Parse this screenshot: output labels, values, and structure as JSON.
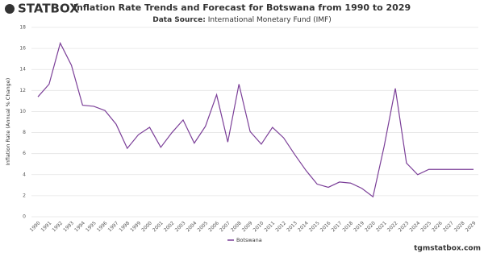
{
  "brand": "STATBOX",
  "footer": "tgmstatbox.com",
  "chart_data": {
    "type": "line",
    "title": "Inflation Rate Trends and Forecast for Botswana from 1990 to 2029",
    "subtitle_label": "Data Source:",
    "subtitle": "International Monetary Fund (IMF)",
    "y_label": "Inflation Rate (Annual % Change)",
    "categories": [
      "1990",
      "1991",
      "1992",
      "1993",
      "1994",
      "1995",
      "1996",
      "1997",
      "1998",
      "1999",
      "2000",
      "2001",
      "2002",
      "2003",
      "2004",
      "2005",
      "2006",
      "2007",
      "2008",
      "2009",
      "2010",
      "2011",
      "2012",
      "2013",
      "2014",
      "2015",
      "2016",
      "2017",
      "2018",
      "2019",
      "2020",
      "2021",
      "2022",
      "2023",
      "2024",
      "2025",
      "2026",
      "2027",
      "2028",
      "2029"
    ],
    "series": [
      {
        "name": "Botswana",
        "color": "#7b3f98",
        "values": [
          11.4,
          12.6,
          16.5,
          14.4,
          10.6,
          10.5,
          10.1,
          8.8,
          6.5,
          7.8,
          8.5,
          6.6,
          8.0,
          9.2,
          7.0,
          8.6,
          11.6,
          7.1,
          12.6,
          8.1,
          6.9,
          8.5,
          7.5,
          5.9,
          4.4,
          3.1,
          2.8,
          3.3,
          3.2,
          2.7,
          1.9,
          6.7,
          12.2,
          5.1,
          4.0,
          4.5,
          4.5,
          4.5,
          4.5,
          4.5
        ]
      }
    ],
    "ylim": [
      0,
      18
    ],
    "yticks": [
      0,
      2,
      4,
      6,
      8,
      10,
      12,
      14,
      16,
      18
    ],
    "grid": true,
    "legend": "bottom"
  }
}
